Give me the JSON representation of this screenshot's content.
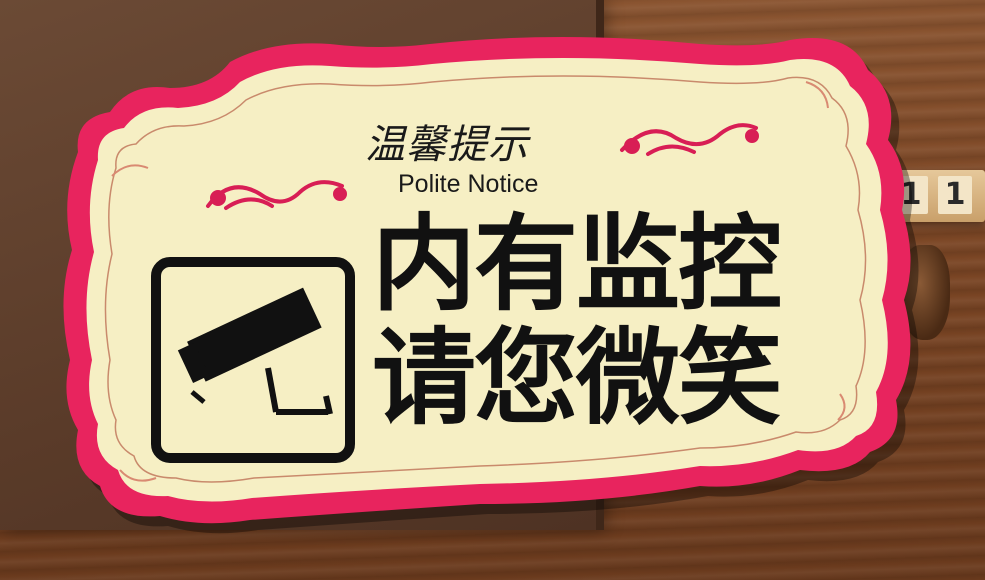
{
  "sign": {
    "title_cn": "温馨提示",
    "title_en": "Polite Notice",
    "line1": "内有监控",
    "line2": "请您微笑",
    "icon": "cctv-camera-icon"
  },
  "block": {
    "digit1": "1",
    "digit2": "1"
  },
  "colors": {
    "border": "#e8245e",
    "panel": "#f6efc4",
    "ornament": "#d81e55",
    "text": "#111111",
    "box": "#5a3b29",
    "table": "#7a4524"
  }
}
